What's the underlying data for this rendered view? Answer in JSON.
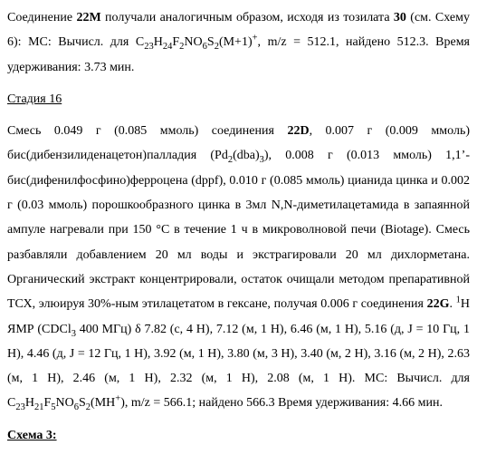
{
  "para1": {
    "t1": "Соединение ",
    "b1": "22M",
    "t2": " получали аналогичным образом, исходя из тозилата ",
    "b2": "30",
    "t3": " (см. Схему 6): MC: Вычисл. для C",
    "s1": "23",
    "t4": "H",
    "s2": "24",
    "t5": "F",
    "s3": "2",
    "t6": "NO",
    "s4": "6",
    "t7": "S",
    "s5": "2",
    "t8": "(M+1)",
    "sup1": "+",
    "t9": ",   m/z  =  512.1,  найдено 512.3.   Время удерживания: 3.73 мин."
  },
  "stage": {
    "label": "Стадия 16"
  },
  "para2": {
    "t1": "Смесь   0.049   г   (0.085   ммоль)   соединения  ",
    "b1": "22D",
    "t2": ",   0.007   г   (0.009   ммоль) бис(дибензилиденацетон)палладия  (Pd",
    "s1": "2",
    "t3": "(dba)",
    "s2": "3",
    "t4": "),    0.008    г    (0.013    ммоль)    1,1’-бис(дифенилфосфино)ферроцена  (dppf), 0.010 г (0.085 ммоль) цианида цинка и 0.002 г (0.03 ммоль) порошкообразного цинка в 3мл N,N-диметилацетамида в запаянной ампуле нагревали при 150 °C в течение 1 ч в микроволновой печи (Biotage).   Смесь разбавляли добавлением 20 мл воды и экстрагировали 20 мл дихлорметана.    Органический экстракт концентрировали, остаток очищали методом препаративной ТСХ, элюируя 30%-ным этилацетатом в гексане, получая 0.006 г соединения ",
    "b2": "22G",
    "t5": ".  ",
    "sup1": "1",
    "t6": "H ЯМР (CDCl",
    "s3": "3",
    "t7": " 400 МГц)   δ 7.82 (с, 4 H), 7.12 (м, 1 H), 6.46 (м, 1 H), 5.16 (д, J = 10 Гц, 1 H), 4.46 (д, J = 12 Гц, 1 H), 3.92 (м, 1 H), 3.80 (м, 3 H), 3.40 (м, 2 H), 3.16 (м, 2 H), 2.63 (м, 1 H), 2.46 (м, 1 H), 2.32 (м, 1 H), 2.08 (м, 1 H). MC: Вычисл. для C",
    "s4": "23",
    "t8": "H",
    "s5": "21",
    "t9": "F",
    "s6": "5",
    "t10": "NO",
    "s7": "6",
    "t11": "S",
    "s8": "2",
    "t12": "(MH",
    "sup2": "+",
    "t13": "),  m/z  =  566.1;  найдено 566.3   Время удерживания: 4.66 мин."
  },
  "scheme": {
    "label": "Схема 3:"
  }
}
